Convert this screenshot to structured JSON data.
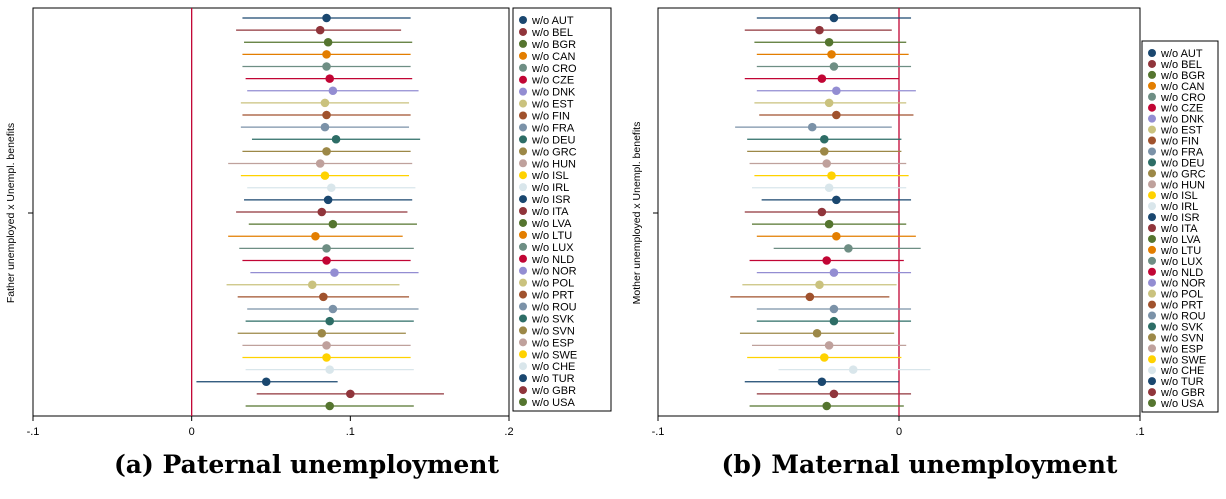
{
  "chart_data": [
    {
      "type": "scatter",
      "subtype": "coefficient-plot",
      "caption": "(a) Paternal unemployment",
      "ylabel": "Father unemployed x Unempl. benefits",
      "xlim": [
        -0.1,
        0.2
      ],
      "xticks": [
        -0.1,
        0,
        0.1,
        0.2
      ],
      "xtick_labels": [
        "-.1",
        "0",
        ".1",
        ".2"
      ],
      "reference_line_x": 0,
      "reference_line_color": "#c10534",
      "legend_position": "right",
      "grid": false,
      "series": [
        {
          "name": "w/o AUT",
          "color": "#1a476f",
          "estimate": 0.085,
          "ci": [
            0.032,
            0.138
          ]
        },
        {
          "name": "w/o BEL",
          "color": "#90353b",
          "estimate": 0.081,
          "ci": [
            0.028,
            0.132
          ]
        },
        {
          "name": "w/o BGR",
          "color": "#55752f",
          "estimate": 0.086,
          "ci": [
            0.033,
            0.139
          ]
        },
        {
          "name": "w/o CAN",
          "color": "#e37e00",
          "estimate": 0.085,
          "ci": [
            0.032,
            0.138
          ]
        },
        {
          "name": "w/o CRO",
          "color": "#6e8e84",
          "estimate": 0.085,
          "ci": [
            0.032,
            0.138
          ]
        },
        {
          "name": "w/o CZE",
          "color": "#c10534",
          "estimate": 0.087,
          "ci": [
            0.034,
            0.139
          ]
        },
        {
          "name": "w/o DNK",
          "color": "#938dd2",
          "estimate": 0.089,
          "ci": [
            0.035,
            0.143
          ]
        },
        {
          "name": "w/o EST",
          "color": "#cac27e",
          "estimate": 0.084,
          "ci": [
            0.031,
            0.137
          ]
        },
        {
          "name": "w/o FIN",
          "color": "#a0522d",
          "estimate": 0.085,
          "ci": [
            0.032,
            0.138
          ]
        },
        {
          "name": "w/o FRA",
          "color": "#7b92a8",
          "estimate": 0.084,
          "ci": [
            0.031,
            0.137
          ]
        },
        {
          "name": "w/o DEU",
          "color": "#2d6d66",
          "estimate": 0.091,
          "ci": [
            0.038,
            0.144
          ]
        },
        {
          "name": "w/o GRC",
          "color": "#9c8847",
          "estimate": 0.085,
          "ci": [
            0.032,
            0.138
          ]
        },
        {
          "name": "w/o HUN",
          "color": "#bfa19c",
          "estimate": 0.081,
          "ci": [
            0.023,
            0.139
          ]
        },
        {
          "name": "w/o ISL",
          "color": "#ffd200",
          "estimate": 0.084,
          "ci": [
            0.031,
            0.137
          ]
        },
        {
          "name": "w/o IRL",
          "color": "#d9e6eb",
          "estimate": 0.088,
          "ci": [
            0.035,
            0.141
          ]
        },
        {
          "name": "w/o ISR",
          "color": "#1a476f",
          "estimate": 0.086,
          "ci": [
            0.033,
            0.139
          ]
        },
        {
          "name": "w/o ITA",
          "color": "#90353b",
          "estimate": 0.082,
          "ci": [
            0.028,
            0.136
          ]
        },
        {
          "name": "w/o LVA",
          "color": "#55752f",
          "estimate": 0.089,
          "ci": [
            0.036,
            0.142
          ]
        },
        {
          "name": "w/o LTU",
          "color": "#e37e00",
          "estimate": 0.078,
          "ci": [
            0.023,
            0.133
          ]
        },
        {
          "name": "w/o LUX",
          "color": "#6e8e84",
          "estimate": 0.085,
          "ci": [
            0.03,
            0.14
          ]
        },
        {
          "name": "w/o NLD",
          "color": "#c10534",
          "estimate": 0.085,
          "ci": [
            0.032,
            0.138
          ]
        },
        {
          "name": "w/o NOR",
          "color": "#938dd2",
          "estimate": 0.09,
          "ci": [
            0.037,
            0.143
          ]
        },
        {
          "name": "w/o POL",
          "color": "#cac27e",
          "estimate": 0.076,
          "ci": [
            0.022,
            0.131
          ]
        },
        {
          "name": "w/o PRT",
          "color": "#a0522d",
          "estimate": 0.083,
          "ci": [
            0.029,
            0.137
          ]
        },
        {
          "name": "w/o ROU",
          "color": "#7b92a8",
          "estimate": 0.089,
          "ci": [
            0.035,
            0.143
          ]
        },
        {
          "name": "w/o SVK",
          "color": "#2d6d66",
          "estimate": 0.087,
          "ci": [
            0.034,
            0.14
          ]
        },
        {
          "name": "w/o SVN",
          "color": "#9c8847",
          "estimate": 0.082,
          "ci": [
            0.029,
            0.135
          ]
        },
        {
          "name": "w/o ESP",
          "color": "#bfa19c",
          "estimate": 0.085,
          "ci": [
            0.032,
            0.138
          ]
        },
        {
          "name": "w/o SWE",
          "color": "#ffd200",
          "estimate": 0.085,
          "ci": [
            0.032,
            0.138
          ]
        },
        {
          "name": "w/o CHE",
          "color": "#d9e6eb",
          "estimate": 0.087,
          "ci": [
            0.034,
            0.14
          ]
        },
        {
          "name": "w/o TUR",
          "color": "#1a476f",
          "estimate": 0.047,
          "ci": [
            0.003,
            0.092
          ]
        },
        {
          "name": "w/o GBR",
          "color": "#90353b",
          "estimate": 0.1,
          "ci": [
            0.041,
            0.159
          ]
        },
        {
          "name": "w/o USA",
          "color": "#55752f",
          "estimate": 0.087,
          "ci": [
            0.034,
            0.14
          ]
        }
      ]
    },
    {
      "type": "scatter",
      "subtype": "coefficient-plot",
      "caption": "(b) Maternal unemployment",
      "ylabel": "Mother unemployed x Unempl. benefits",
      "xlim": [
        -0.1,
        0.1
      ],
      "xticks": [
        -0.1,
        0,
        0.1
      ],
      "xtick_labels": [
        "-.1",
        "0",
        ".1"
      ],
      "reference_line_x": 0,
      "reference_line_color": "#c10534",
      "legend_position": "right",
      "grid": false,
      "series": [
        {
          "name": "w/o AUT",
          "color": "#1a476f",
          "estimate": -0.027,
          "ci": [
            -0.059,
            0.005
          ]
        },
        {
          "name": "w/o BEL",
          "color": "#90353b",
          "estimate": -0.033,
          "ci": [
            -0.064,
            -0.003
          ]
        },
        {
          "name": "w/o BGR",
          "color": "#55752f",
          "estimate": -0.029,
          "ci": [
            -0.06,
            0.003
          ]
        },
        {
          "name": "w/o CAN",
          "color": "#e37e00",
          "estimate": -0.028,
          "ci": [
            -0.059,
            0.004
          ]
        },
        {
          "name": "w/o CRO",
          "color": "#6e8e84",
          "estimate": -0.027,
          "ci": [
            -0.059,
            0.005
          ]
        },
        {
          "name": "w/o CZE",
          "color": "#c10534",
          "estimate": -0.032,
          "ci": [
            -0.064,
            0.0
          ]
        },
        {
          "name": "w/o DNK",
          "color": "#938dd2",
          "estimate": -0.026,
          "ci": [
            -0.059,
            0.007
          ]
        },
        {
          "name": "w/o EST",
          "color": "#cac27e",
          "estimate": -0.029,
          "ci": [
            -0.06,
            0.003
          ]
        },
        {
          "name": "w/o FIN",
          "color": "#a0522d",
          "estimate": -0.026,
          "ci": [
            -0.058,
            0.006
          ]
        },
        {
          "name": "w/o FRA",
          "color": "#7b92a8",
          "estimate": -0.036,
          "ci": [
            -0.068,
            -0.003
          ]
        },
        {
          "name": "w/o DEU",
          "color": "#2d6d66",
          "estimate": -0.031,
          "ci": [
            -0.063,
            0.001
          ]
        },
        {
          "name": "w/o GRC",
          "color": "#9c8847",
          "estimate": -0.031,
          "ci": [
            -0.063,
            0.001
          ]
        },
        {
          "name": "w/o HUN",
          "color": "#bfa19c",
          "estimate": -0.03,
          "ci": [
            -0.062,
            0.003
          ]
        },
        {
          "name": "w/o ISL",
          "color": "#ffd200",
          "estimate": -0.028,
          "ci": [
            -0.06,
            0.004
          ]
        },
        {
          "name": "w/o IRL",
          "color": "#d9e6eb",
          "estimate": -0.029,
          "ci": [
            -0.061,
            0.003
          ]
        },
        {
          "name": "w/o ISR",
          "color": "#1a476f",
          "estimate": -0.026,
          "ci": [
            -0.057,
            0.005
          ]
        },
        {
          "name": "w/o ITA",
          "color": "#90353b",
          "estimate": -0.032,
          "ci": [
            -0.064,
            0.0
          ]
        },
        {
          "name": "w/o LVA",
          "color": "#55752f",
          "estimate": -0.029,
          "ci": [
            -0.061,
            0.003
          ]
        },
        {
          "name": "w/o LTU",
          "color": "#e37e00",
          "estimate": -0.026,
          "ci": [
            -0.059,
            0.007
          ]
        },
        {
          "name": "w/o LUX",
          "color": "#6e8e84",
          "estimate": -0.021,
          "ci": [
            -0.052,
            0.009
          ]
        },
        {
          "name": "w/o NLD",
          "color": "#c10534",
          "estimate": -0.03,
          "ci": [
            -0.062,
            0.002
          ]
        },
        {
          "name": "w/o NOR",
          "color": "#938dd2",
          "estimate": -0.027,
          "ci": [
            -0.059,
            0.005
          ]
        },
        {
          "name": "w/o POL",
          "color": "#cac27e",
          "estimate": -0.033,
          "ci": [
            -0.065,
            -0.001
          ]
        },
        {
          "name": "w/o PRT",
          "color": "#a0522d",
          "estimate": -0.037,
          "ci": [
            -0.07,
            -0.004
          ]
        },
        {
          "name": "w/o ROU",
          "color": "#7b92a8",
          "estimate": -0.027,
          "ci": [
            -0.059,
            0.005
          ]
        },
        {
          "name": "w/o SVK",
          "color": "#2d6d66",
          "estimate": -0.027,
          "ci": [
            -0.059,
            0.005
          ]
        },
        {
          "name": "w/o SVN",
          "color": "#9c8847",
          "estimate": -0.034,
          "ci": [
            -0.066,
            -0.002
          ]
        },
        {
          "name": "w/o ESP",
          "color": "#bfa19c",
          "estimate": -0.029,
          "ci": [
            -0.061,
            0.003
          ]
        },
        {
          "name": "w/o SWE",
          "color": "#ffd200",
          "estimate": -0.031,
          "ci": [
            -0.063,
            0.001
          ]
        },
        {
          "name": "w/o CHE",
          "color": "#d9e6eb",
          "estimate": -0.019,
          "ci": [
            -0.05,
            0.013
          ]
        },
        {
          "name": "w/o TUR",
          "color": "#1a476f",
          "estimate": -0.032,
          "ci": [
            -0.064,
            0.0
          ]
        },
        {
          "name": "w/o GBR",
          "color": "#90353b",
          "estimate": -0.027,
          "ci": [
            -0.059,
            0.005
          ]
        },
        {
          "name": "w/o USA",
          "color": "#55752f",
          "estimate": -0.03,
          "ci": [
            -0.062,
            0.002
          ]
        }
      ]
    }
  ]
}
